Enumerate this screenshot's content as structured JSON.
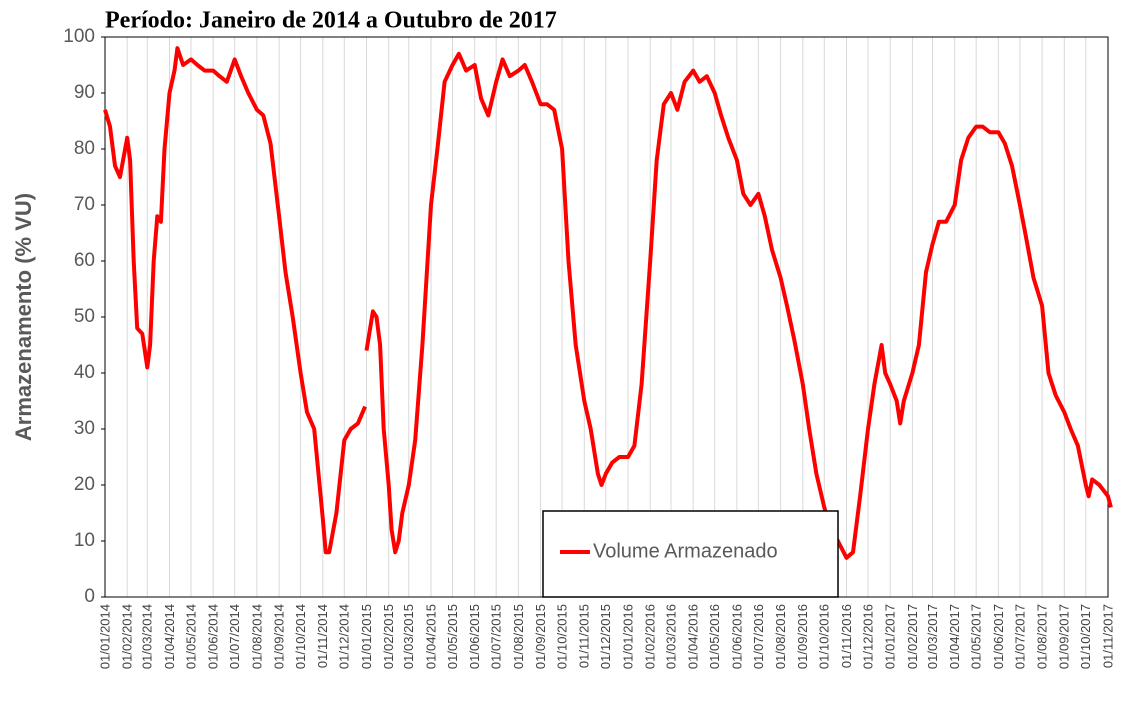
{
  "chart_data": {
    "type": "line",
    "title": "Período: Janeiro de 2014 a Outubro de 2017",
    "y_label": "Armazenamento (% VU)",
    "x": [
      "01/01/2014",
      "08/01/2014",
      "15/01/2014",
      "22/01/2014",
      "01/02/2014",
      "05/02/2014",
      "10/02/2014",
      "15/02/2014",
      "22/02/2014",
      "01/03/2014",
      "05/03/2014",
      "10/03/2014",
      "15/03/2014",
      "20/03/2014",
      "25/03/2014",
      "01/04/2014",
      "08/04/2014",
      "12/04/2014",
      "20/04/2014",
      "01/05/2014",
      "10/05/2014",
      "20/05/2014",
      "01/06/2014",
      "10/06/2014",
      "20/06/2014",
      "01/07/2014",
      "10/07/2014",
      "20/07/2014",
      "01/08/2014",
      "10/08/2014",
      "20/08/2014",
      "01/09/2014",
      "10/09/2014",
      "20/09/2014",
      "01/10/2014",
      "10/10/2014",
      "20/10/2014",
      "01/11/2014",
      "05/11/2014",
      "10/11/2014",
      "20/11/2014",
      "01/12/2014",
      "10/12/2014",
      "20/12/2014",
      "30/12/2014",
      "31/12/2014",
      "01/01/2015",
      "10/01/2015",
      "15/01/2015",
      "20/01/2015",
      "25/01/2015",
      "01/02/2015",
      "05/02/2015",
      "10/02/2015",
      "15/02/2015",
      "20/02/2015",
      "01/03/2015",
      "10/03/2015",
      "20/03/2015",
      "01/04/2015",
      "10/04/2015",
      "20/04/2015",
      "01/05/2015",
      "10/05/2015",
      "20/05/2015",
      "01/06/2015",
      "10/06/2015",
      "20/06/2015",
      "01/07/2015",
      "10/07/2015",
      "20/07/2015",
      "01/08/2015",
      "10/08/2015",
      "20/08/2015",
      "01/09/2015",
      "10/09/2015",
      "20/09/2015",
      "01/10/2015",
      "10/10/2015",
      "20/10/2015",
      "01/11/2015",
      "10/11/2015",
      "20/11/2015",
      "25/11/2015",
      "01/12/2015",
      "10/12/2015",
      "20/12/2015",
      "01/01/2016",
      "10/01/2016",
      "20/01/2016",
      "01/02/2016",
      "10/02/2016",
      "20/02/2016",
      "01/03/2016",
      "10/03/2016",
      "20/03/2016",
      "01/04/2016",
      "10/04/2016",
      "20/04/2016",
      "01/05/2016",
      "10/05/2016",
      "20/05/2016",
      "01/06/2016",
      "10/06/2016",
      "20/06/2016",
      "01/07/2016",
      "10/07/2016",
      "20/07/2016",
      "01/08/2016",
      "10/08/2016",
      "20/08/2016",
      "01/09/2016",
      "10/09/2016",
      "20/09/2016",
      "01/10/2016",
      "10/10/2016",
      "20/10/2016",
      "01/11/2016",
      "10/11/2016",
      "20/11/2016",
      "01/12/2016",
      "10/12/2016",
      "20/12/2016",
      "25/12/2016",
      "01/01/2017",
      "10/01/2017",
      "15/01/2017",
      "20/01/2017",
      "01/02/2017",
      "10/02/2017",
      "20/02/2017",
      "01/03/2017",
      "10/03/2017",
      "20/03/2017",
      "01/04/2017",
      "10/04/2017",
      "20/04/2017",
      "01/05/2017",
      "10/05/2017",
      "20/05/2017",
      "01/06/2017",
      "10/06/2017",
      "20/06/2017",
      "01/07/2017",
      "10/07/2017",
      "20/07/2017",
      "01/08/2017",
      "10/08/2017",
      "20/08/2017",
      "01/09/2017",
      "10/09/2017",
      "20/09/2017",
      "01/10/2017",
      "05/10/2017",
      "10/10/2017",
      "20/10/2017",
      "01/11/2017",
      "05/11/2017"
    ],
    "series": [
      {
        "name": "Volume Armazenado",
        "color": "#ff0000",
        "values": [
          87,
          84,
          77,
          75,
          82,
          78,
          60,
          48,
          47,
          41,
          45,
          60,
          68,
          67,
          80,
          90,
          94,
          98,
          95,
          96,
          95,
          94,
          94,
          93,
          92,
          96,
          93,
          90,
          87,
          86,
          81,
          68,
          58,
          50,
          40,
          33,
          30,
          14,
          8,
          8,
          15,
          28,
          30,
          31,
          34,
          null,
          44,
          51,
          50,
          45,
          30,
          20,
          12,
          8,
          10,
          15,
          20,
          28,
          45,
          70,
          80,
          92,
          95,
          97,
          94,
          95,
          89,
          86,
          92,
          96,
          93,
          94,
          95,
          92,
          88,
          88,
          87,
          80,
          60,
          45,
          35,
          30,
          22,
          20,
          22,
          24,
          25,
          25,
          27,
          38,
          60,
          78,
          88,
          90,
          87,
          92,
          94,
          92,
          93,
          90,
          86,
          82,
          78,
          72,
          70,
          72,
          68,
          62,
          57,
          52,
          46,
          38,
          30,
          22,
          16,
          12,
          10,
          7,
          8,
          18,
          30,
          38,
          45,
          40,
          38,
          35,
          31,
          35,
          40,
          45,
          58,
          63,
          67,
          67,
          70,
          78,
          82,
          84,
          84,
          83,
          83,
          81,
          77,
          70,
          64,
          57,
          52,
          40,
          36,
          33,
          30,
          27,
          20,
          18,
          21,
          20,
          18,
          16
        ]
      }
    ],
    "xlim": [
      "01/01/2014",
      "01/11/2017"
    ],
    "xticks": [
      "01/01/2014",
      "01/02/2014",
      "01/03/2014",
      "01/04/2014",
      "01/05/2014",
      "01/06/2014",
      "01/07/2014",
      "01/08/2014",
      "01/09/2014",
      "01/10/2014",
      "01/11/2014",
      "01/12/2014",
      "01/01/2015",
      "01/02/2015",
      "01/03/2015",
      "01/04/2015",
      "01/05/2015",
      "01/06/2015",
      "01/07/2015",
      "01/08/2015",
      "01/09/2015",
      "01/10/2015",
      "01/11/2015",
      "01/12/2015",
      "01/01/2016",
      "01/02/2016",
      "01/03/2016",
      "01/04/2016",
      "01/05/2016",
      "01/06/2016",
      "01/07/2016",
      "01/08/2016",
      "01/09/2016",
      "01/10/2016",
      "01/11/2016",
      "01/12/2016",
      "01/01/2017",
      "01/02/2017",
      "01/03/2017",
      "01/04/2017",
      "01/05/2017",
      "01/06/2017",
      "01/07/2017",
      "01/08/2017",
      "01/09/2017",
      "01/10/2017",
      "01/11/2017"
    ],
    "ylim": [
      0,
      100
    ],
    "yticks": [
      0,
      10,
      20,
      30,
      40,
      50,
      60,
      70,
      80,
      90,
      100
    ],
    "grid": "x",
    "legend": "lower center"
  }
}
